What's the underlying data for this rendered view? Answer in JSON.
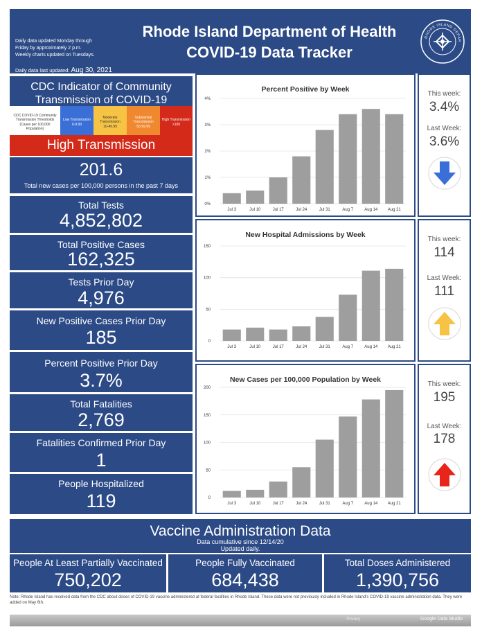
{
  "header": {
    "note_lines": [
      "Daily data updated Monday through",
      "Friday by approximately 2 p.m.",
      "Weekly charts updated on Tuesdays."
    ],
    "last_updated_label": "Daily data last updated:",
    "last_updated_value": "Aug 30, 2021",
    "title_line1": "Rhode Island Department of Health",
    "title_line2": "COVID-19 Data Tracker",
    "seal_text": "RHODE ISLAND DEPARTMENT OF HEALTH"
  },
  "cdc": {
    "title_line1": "CDC Indicator of Community",
    "title_line2": "Transmission of COVID-19",
    "legend": [
      {
        "label": "CDC COVID-19 Community Transmission Thresholds (Cases per 100,000 Population)",
        "range": ""
      },
      {
        "label": "Low Transmission",
        "range": "0-9.99"
      },
      {
        "label": "Moderate Transmission",
        "range": "10-49.99"
      },
      {
        "label": "Substantial Transmission",
        "range": "50-99.99"
      },
      {
        "label": "High Transmission",
        "range": ">100"
      }
    ],
    "level": "High Transmission",
    "rate_value": "201.6",
    "rate_label": "Total new cases per 100,000 persons in the past 7 days"
  },
  "stats": [
    {
      "label": "Total Tests",
      "value": "4,852,802"
    },
    {
      "label": "Total Positive Cases",
      "value": "162,325"
    },
    {
      "label": "Tests Prior Day",
      "value": "4,976"
    },
    {
      "label": "New Positive Cases Prior Day",
      "value": "185"
    },
    {
      "label": "Percent Positive Prior Day",
      "value": "3.7%"
    },
    {
      "label": "Total Fatalities",
      "value": "2,769"
    },
    {
      "label": "Fatalities Confirmed Prior Day",
      "value": "1"
    },
    {
      "label": "People Hospitalized",
      "value": "119"
    }
  ],
  "chart_data": [
    {
      "type": "bar",
      "title": "Percent Positive by Week",
      "categories": [
        "Jul 3",
        "Jul 10",
        "Jul 17",
        "Jul 24",
        "Jul 31",
        "Aug 7",
        "Aug 14",
        "Aug 21"
      ],
      "values": [
        0.4,
        0.5,
        1.0,
        1.8,
        2.8,
        3.4,
        3.6,
        3.4
      ],
      "ylim": [
        0,
        4
      ],
      "yticks": [
        0,
        1,
        2,
        3,
        4
      ],
      "ytick_labels": [
        "0%",
        "1%",
        "2%",
        "3%",
        "4%"
      ],
      "bar_color": "#9e9e9e",
      "this_week_label": "This week:",
      "this_week": "3.4%",
      "last_week_label": "Last Week:",
      "last_week": "3.6%",
      "trend": "down",
      "trend_color": "#3b6fd8"
    },
    {
      "type": "bar",
      "title": "New Hospital Admissions by Week",
      "categories": [
        "Jul 3",
        "Jul 10",
        "Jul 17",
        "Jul 24",
        "Jul 31",
        "Aug 7",
        "Aug 14",
        "Aug 21"
      ],
      "values": [
        18,
        21,
        18,
        23,
        38,
        73,
        111,
        114
      ],
      "ylim": [
        0,
        150
      ],
      "yticks": [
        0,
        50,
        100,
        150
      ],
      "ytick_labels": [
        "0",
        "50",
        "100",
        "150"
      ],
      "bar_color": "#9e9e9e",
      "this_week_label": "This week:",
      "this_week": "114",
      "last_week_label": "Last Week:",
      "last_week": "111",
      "trend": "up",
      "trend_color": "#f6c344"
    },
    {
      "type": "bar",
      "title": "New Cases per 100,000 Population by Week",
      "categories": [
        "Jul 3",
        "Jul 10",
        "Jul 17",
        "Jul 24",
        "Jul 31",
        "Aug 7",
        "Aug 14",
        "Aug 21"
      ],
      "values": [
        12,
        14,
        29,
        55,
        105,
        147,
        178,
        195
      ],
      "ylim": [
        0,
        200
      ],
      "yticks": [
        0,
        50,
        100,
        150,
        200
      ],
      "ytick_labels": [
        "0",
        "50",
        "100",
        "150",
        "200"
      ],
      "bar_color": "#9e9e9e",
      "this_week_label": "This week:",
      "this_week": "195",
      "last_week_label": "Last Week:",
      "last_week": "178",
      "trend": "up",
      "trend_color": "#e8241b"
    }
  ],
  "vaccine": {
    "title": "Vaccine Administration Data",
    "sub1": "Data cumulative since 12/14/20",
    "sub2": "Updated daily.",
    "boxes": [
      {
        "label": "People At Least Partially Vaccinated",
        "value": "750,202"
      },
      {
        "label": "People Fully Vaccinated",
        "value": "684,438"
      },
      {
        "label": "Total Doses Administered",
        "value": "1,390,756"
      }
    ]
  },
  "footnote": "Note: Rhode Island has received data from the CDC about doses of COVID-19 vaccine administered at federal facilities in Rhode Island. These data were not previously included in Rhode Island's COVID-19 vaccine administration data. They were added on May 6th.",
  "footer": {
    "privacy": "Privacy",
    "brand": "Google Data Studio"
  }
}
